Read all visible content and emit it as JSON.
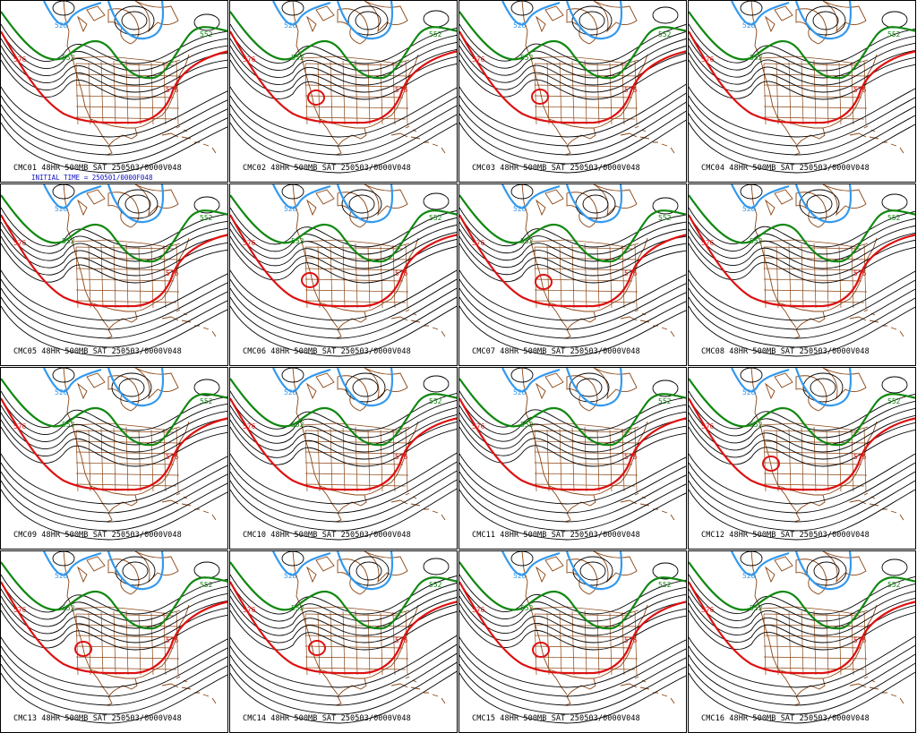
{
  "colors": {
    "background": "#ffffff",
    "contour": "#000000",
    "contour_528": "#3399ee",
    "contour_552": "#118811",
    "contour_576": "#dd1111",
    "geography": "#8b4513",
    "subcaption": "#1010c0"
  },
  "contour_labels": {
    "c528": "528",
    "c552": "552",
    "c576": "576"
  },
  "initial_time": "INITIAL TIME = 250501/0000F048",
  "panels": [
    {
      "caption": "CMC01 48HR 500MB SAT 250503/0000V048",
      "closed_low": false
    },
    {
      "caption": "CMC05 48HR 500MB SAT 250503/0000V048",
      "closed_low": false
    },
    {
      "caption": "CMC09 48HR 500MB SAT 250503/0000V048",
      "closed_low": false
    },
    {
      "caption": "CMC13 48HR 500MB SAT 250503/0000V048",
      "closed_low": true
    },
    {
      "caption": "CMC02 48HR 500MB SAT 250503/0000V048",
      "closed_low": true
    },
    {
      "caption": "CMC06 48HR 500MB SAT 250503/0000V048",
      "closed_low": true
    },
    {
      "caption": "CMC10 48HR 500MB SAT 250503/0000V048",
      "closed_low": false
    },
    {
      "caption": "CMC14 48HR 500MB SAT 250503/0000V048",
      "closed_low": true
    },
    {
      "caption": "CMC03 48HR 500MB SAT 250503/0000V048",
      "closed_low": true
    },
    {
      "caption": "CMC07 48HR 500MB SAT 250503/0000V048",
      "closed_low": true
    },
    {
      "caption": "CMC11 48HR 500MB SAT 250503/0000V048",
      "closed_low": false
    },
    {
      "caption": "CMC15 48HR 500MB SAT 250503/0000V048",
      "closed_low": true
    },
    {
      "caption": "CMC04 48HR 500MB SAT 250503/0000V048",
      "closed_low": false
    },
    {
      "caption": "CMC08 48HR 500MB SAT 250503/0000V048",
      "closed_low": false
    },
    {
      "caption": "CMC12 48HR 500MB SAT 250503/0000V048",
      "closed_low": true
    },
    {
      "caption": "CMC16 48HR 500MB SAT 250503/0000V048",
      "closed_low": false
    }
  ]
}
